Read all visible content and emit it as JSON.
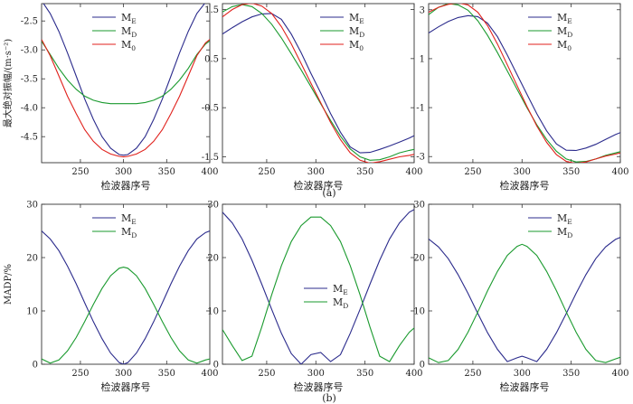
{
  "figure": {
    "row_a_caption": "(a)",
    "row_b_caption": "(b)",
    "colors": {
      "ME": "#2b2b8c",
      "MD": "#1a9a2e",
      "M0": "#e0211c"
    }
  },
  "chart_data": [
    {
      "type": "line",
      "panel": "a1",
      "xlabel": "检波器序号",
      "ylabel": "最大绝对振幅/(m·s⁻²)",
      "xlim": [
        205,
        400
      ],
      "ylim": [
        -4.95,
        -2.2
      ],
      "xticks": [
        250,
        300,
        350,
        400
      ],
      "yticks": [
        -2.5,
        -3.0,
        -3.5,
        -4.0,
        -4.5
      ],
      "ytick_labels": [
        "-2.5",
        "-3.0",
        "-3.5",
        "-4.0",
        "-4.5"
      ],
      "legend_position": "top-center",
      "x": [
        205,
        215,
        225,
        235,
        245,
        255,
        265,
        275,
        285,
        295,
        300,
        305,
        315,
        325,
        335,
        345,
        355,
        365,
        375,
        385,
        395,
        400
      ],
      "series": [
        {
          "name": "ME",
          "label": "M",
          "sub": "E",
          "values": [
            -2.15,
            -2.37,
            -2.68,
            -3.05,
            -3.45,
            -3.85,
            -4.2,
            -4.5,
            -4.7,
            -4.81,
            -4.82,
            -4.81,
            -4.7,
            -4.5,
            -4.2,
            -3.85,
            -3.45,
            -3.05,
            -2.68,
            -2.37,
            -2.18,
            -2.13
          ]
        },
        {
          "name": "MD",
          "label": "M",
          "sub": "D",
          "values": [
            -2.85,
            -3.08,
            -3.32,
            -3.52,
            -3.68,
            -3.8,
            -3.87,
            -3.91,
            -3.93,
            -3.93,
            -3.93,
            -3.93,
            -3.93,
            -3.91,
            -3.87,
            -3.8,
            -3.68,
            -3.52,
            -3.32,
            -3.08,
            -2.9,
            -2.84
          ]
        },
        {
          "name": "M0",
          "label": "M",
          "sub": "0",
          "values": [
            -2.82,
            -3.1,
            -3.45,
            -3.8,
            -4.1,
            -4.38,
            -4.58,
            -4.72,
            -4.8,
            -4.84,
            -4.85,
            -4.84,
            -4.8,
            -4.72,
            -4.58,
            -4.38,
            -4.1,
            -3.8,
            -3.45,
            -3.1,
            -2.88,
            -2.82
          ]
        }
      ]
    },
    {
      "type": "line",
      "panel": "a2",
      "xlabel": "检波器序号",
      "ylabel": "",
      "xlim": [
        205,
        400
      ],
      "ylim": [
        -1.62,
        1.62
      ],
      "xticks": [
        250,
        300,
        350,
        400
      ],
      "yticks": [
        1.5,
        0.5,
        -0.5,
        -1.5
      ],
      "ytick_labels": [
        "1.5",
        "0.5",
        "-0.5",
        "-1.5"
      ],
      "legend_position": "top-right",
      "x": [
        205,
        215,
        225,
        235,
        245,
        255,
        265,
        275,
        285,
        295,
        305,
        315,
        325,
        335,
        345,
        355,
        365,
        375,
        385,
        395,
        400
      ],
      "series": [
        {
          "name": "ME",
          "label": "M",
          "sub": "E",
          "values": [
            1.0,
            1.13,
            1.25,
            1.35,
            1.41,
            1.42,
            1.3,
            1.0,
            0.62,
            0.2,
            -0.2,
            -0.62,
            -1.0,
            -1.3,
            -1.42,
            -1.41,
            -1.35,
            -1.28,
            -1.2,
            -1.12,
            -1.07
          ]
        },
        {
          "name": "MD",
          "label": "M",
          "sub": "D",
          "values": [
            1.45,
            1.56,
            1.6,
            1.56,
            1.42,
            1.2,
            0.92,
            0.6,
            0.27,
            -0.07,
            -0.42,
            -0.76,
            -1.08,
            -1.34,
            -1.5,
            -1.57,
            -1.56,
            -1.5,
            -1.42,
            -1.37,
            -1.35
          ]
        },
        {
          "name": "M0",
          "label": "M",
          "sub": "0",
          "values": [
            1.35,
            1.5,
            1.6,
            1.63,
            1.57,
            1.42,
            1.15,
            0.8,
            0.4,
            0.0,
            -0.4,
            -0.8,
            -1.15,
            -1.42,
            -1.57,
            -1.63,
            -1.6,
            -1.55,
            -1.5,
            -1.47,
            -1.45
          ]
        }
      ]
    },
    {
      "type": "line",
      "panel": "a3",
      "xlabel": "检波器序号",
      "ylabel": "",
      "xlim": [
        205,
        400
      ],
      "ylim": [
        -3.25,
        3.25
      ],
      "xticks": [
        250,
        300,
        350,
        400
      ],
      "yticks": [
        3,
        1,
        -1,
        -3
      ],
      "ytick_labels": [
        "3",
        "1",
        "-1",
        "-3"
      ],
      "legend_position": "top-right",
      "x": [
        205,
        215,
        225,
        235,
        245,
        255,
        265,
        275,
        285,
        295,
        305,
        315,
        325,
        335,
        345,
        355,
        365,
        375,
        385,
        395,
        400
      ],
      "series": [
        {
          "name": "ME",
          "label": "M",
          "sub": "E",
          "values": [
            2.05,
            2.3,
            2.52,
            2.68,
            2.76,
            2.72,
            2.45,
            1.9,
            1.15,
            0.35,
            -0.45,
            -1.25,
            -1.95,
            -2.48,
            -2.74,
            -2.75,
            -2.65,
            -2.5,
            -2.3,
            -2.1,
            -2.02
          ]
        },
        {
          "name": "MD",
          "label": "M",
          "sub": "D",
          "values": [
            2.8,
            3.1,
            3.25,
            3.2,
            2.98,
            2.55,
            1.95,
            1.25,
            0.5,
            -0.25,
            -1.0,
            -1.7,
            -2.3,
            -2.78,
            -3.1,
            -3.22,
            -3.2,
            -3.1,
            -2.95,
            -2.85,
            -2.8
          ]
        },
        {
          "name": "M0",
          "label": "M",
          "sub": "0",
          "values": [
            2.9,
            3.1,
            3.22,
            3.28,
            3.2,
            2.9,
            2.35,
            1.6,
            0.75,
            -0.1,
            -0.95,
            -1.75,
            -2.42,
            -2.92,
            -3.2,
            -3.28,
            -3.22,
            -3.1,
            -2.98,
            -2.9,
            -2.85
          ]
        }
      ]
    },
    {
      "type": "line",
      "panel": "b1",
      "xlabel": "检波器序号",
      "ylabel": "MADP/%",
      "xlim": [
        205,
        400
      ],
      "ylim": [
        0,
        30
      ],
      "xticks": [
        250,
        300,
        350,
        400
      ],
      "yticks": [
        0,
        10,
        20,
        30
      ],
      "ytick_labels": [
        "0",
        "10",
        "20",
        "30"
      ],
      "legend_position": "top-center",
      "x": [
        205,
        215,
        225,
        235,
        245,
        255,
        265,
        275,
        285,
        295,
        300,
        305,
        315,
        325,
        335,
        345,
        355,
        365,
        375,
        385,
        395,
        400
      ],
      "series": [
        {
          "name": "ME",
          "label": "M",
          "sub": "E",
          "values": [
            25.0,
            23.5,
            21.3,
            18.4,
            15.1,
            11.5,
            8.0,
            4.8,
            2.1,
            0.3,
            0.0,
            0.3,
            2.1,
            4.8,
            8.0,
            11.5,
            15.1,
            18.4,
            21.3,
            23.5,
            24.7,
            25.0
          ]
        },
        {
          "name": "MD",
          "label": "M",
          "sub": "D",
          "values": [
            1.0,
            0.2,
            0.8,
            2.5,
            5.0,
            8.0,
            11.2,
            14.2,
            16.6,
            18.0,
            18.2,
            18.0,
            16.6,
            14.2,
            11.2,
            8.0,
            5.0,
            2.5,
            0.8,
            0.2,
            0.8,
            1.0
          ]
        }
      ]
    },
    {
      "type": "line",
      "panel": "b2",
      "xlabel": "检波器序号",
      "ylabel": "",
      "xlim": [
        205,
        400
      ],
      "ylim": [
        0,
        30
      ],
      "xticks": [
        250,
        300,
        350,
        400
      ],
      "yticks": [
        0,
        10,
        20,
        30
      ],
      "ytick_labels": [
        "0",
        "10",
        "20",
        "30"
      ],
      "legend_position": "center",
      "x": [
        205,
        215,
        225,
        235,
        245,
        255,
        265,
        275,
        285,
        295,
        305,
        315,
        325,
        335,
        345,
        355,
        365,
        375,
        385,
        395,
        400
      ],
      "series": [
        {
          "name": "ME",
          "label": "M",
          "sub": "E",
          "values": [
            28.5,
            26.5,
            23.5,
            19.5,
            15.0,
            10.3,
            5.8,
            2.0,
            0.0,
            1.8,
            2.2,
            0.5,
            1.8,
            5.8,
            10.3,
            15.0,
            19.5,
            23.5,
            26.5,
            28.5,
            29.0
          ]
        },
        {
          "name": "MD",
          "label": "M",
          "sub": "D",
          "values": [
            6.5,
            3.5,
            0.7,
            1.5,
            7.0,
            13.0,
            18.5,
            23.0,
            26.0,
            27.6,
            27.6,
            26.0,
            23.0,
            18.5,
            13.0,
            7.0,
            1.5,
            0.5,
            3.5,
            6.0,
            6.8
          ]
        }
      ]
    },
    {
      "type": "line",
      "panel": "b3",
      "xlabel": "检波器序号",
      "ylabel": "",
      "xlim": [
        205,
        400
      ],
      "ylim": [
        0,
        30
      ],
      "xticks": [
        250,
        300,
        350,
        400
      ],
      "yticks": [
        0,
        10,
        20,
        30
      ],
      "ytick_labels": [
        "0",
        "10",
        "20",
        "30"
      ],
      "legend_position": "top-right",
      "x": [
        205,
        215,
        225,
        235,
        245,
        255,
        265,
        275,
        285,
        295,
        300,
        305,
        315,
        325,
        335,
        345,
        355,
        365,
        375,
        385,
        395,
        400
      ],
      "series": [
        {
          "name": "ME",
          "label": "M",
          "sub": "E",
          "values": [
            23.5,
            22.0,
            19.8,
            16.8,
            13.3,
            9.5,
            5.9,
            2.8,
            0.5,
            1.2,
            1.5,
            1.2,
            0.5,
            2.8,
            5.9,
            9.5,
            13.3,
            16.8,
            19.8,
            22.0,
            23.4,
            23.8
          ]
        },
        {
          "name": "MD",
          "label": "M",
          "sub": "D",
          "values": [
            1.2,
            0.3,
            0.7,
            2.8,
            6.0,
            9.8,
            13.8,
            17.4,
            20.4,
            22.1,
            22.5,
            22.1,
            20.4,
            17.4,
            13.8,
            9.8,
            6.0,
            2.8,
            0.7,
            0.3,
            1.0,
            1.3
          ]
        }
      ]
    }
  ]
}
